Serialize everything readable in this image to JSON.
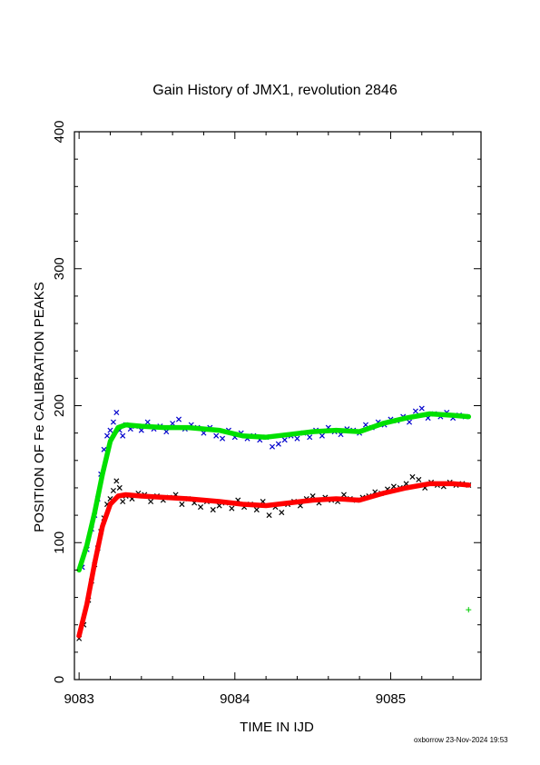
{
  "chart_data": {
    "type": "scatter",
    "title": "Gain History of JMX1, revolution 2846",
    "xlabel": "TIME IN IJD",
    "ylabel": "POSITION OF Fe CALIBRATION PEAKS",
    "xlim": [
      9082.97,
      9085.58
    ],
    "ylim": [
      0,
      400
    ],
    "xticks": [
      9083,
      9084,
      9085
    ],
    "yticks": [
      0,
      100,
      200,
      300,
      400
    ],
    "grid": false,
    "series": [
      {
        "marker": "x",
        "color": "#0000cc",
        "x": [
          9083.02,
          9083.05,
          9083.08,
          9083.1,
          9083.12,
          9083.14,
          9083.16,
          9083.18,
          9083.2,
          9083.22,
          9083.24,
          9083.26,
          9083.28,
          9083.3,
          9083.33,
          9083.36,
          9083.4,
          9083.44,
          9083.48,
          9083.52,
          9083.56,
          9083.6,
          9083.64,
          9083.68,
          9083.72,
          9083.76,
          9083.8,
          9083.84,
          9083.88,
          9083.92,
          9083.96,
          9084.0,
          9084.04,
          9084.08,
          9084.12,
          9084.16,
          9084.2,
          9084.24,
          9084.28,
          9084.32,
          9084.36,
          9084.4,
          9084.44,
          9084.48,
          9084.52,
          9084.56,
          9084.6,
          9084.64,
          9084.68,
          9084.72,
          9084.76,
          9084.8,
          9084.84,
          9084.88,
          9084.92,
          9084.96,
          9085.0,
          9085.04,
          9085.08,
          9085.12,
          9085.16,
          9085.2,
          9085.24,
          9085.28,
          9085.32,
          9085.36,
          9085.4,
          9085.44,
          9085.48
        ],
        "y": [
          82,
          95,
          110,
          120,
          132,
          150,
          168,
          178,
          182,
          188,
          195,
          182,
          178,
          186,
          183,
          185,
          182,
          188,
          183,
          185,
          181,
          187,
          190,
          183,
          186,
          184,
          180,
          184,
          178,
          176,
          182,
          177,
          180,
          176,
          178,
          175,
          177,
          170,
          172,
          175,
          178,
          176,
          180,
          177,
          182,
          178,
          184,
          181,
          179,
          183,
          182,
          180,
          186,
          184,
          188,
          186,
          190,
          189,
          192,
          188,
          196,
          198,
          191,
          194,
          192,
          195,
          191,
          193,
          192
        ]
      },
      {
        "marker": "x",
        "color": "#000000",
        "x": [
          9083.0,
          9083.03,
          9083.06,
          9083.08,
          9083.1,
          9083.12,
          9083.14,
          9083.16,
          9083.18,
          9083.2,
          9083.22,
          9083.24,
          9083.26,
          9083.28,
          9083.3,
          9083.34,
          9083.38,
          9083.42,
          9083.46,
          9083.5,
          9083.54,
          9083.58,
          9083.62,
          9083.66,
          9083.7,
          9083.74,
          9083.78,
          9083.82,
          9083.86,
          9083.9,
          9083.94,
          9083.98,
          9084.02,
          9084.06,
          9084.1,
          9084.14,
          9084.18,
          9084.22,
          9084.26,
          9084.3,
          9084.34,
          9084.38,
          9084.42,
          9084.46,
          9084.5,
          9084.54,
          9084.58,
          9084.62,
          9084.66,
          9084.7,
          9084.74,
          9084.78,
          9084.82,
          9084.86,
          9084.9,
          9084.94,
          9084.98,
          9085.02,
          9085.06,
          9085.1,
          9085.14,
          9085.18,
          9085.22,
          9085.26,
          9085.3,
          9085.34,
          9085.38,
          9085.42,
          9085.46,
          9085.5
        ],
        "y": [
          30,
          40,
          58,
          72,
          84,
          96,
          108,
          118,
          128,
          132,
          138,
          145,
          140,
          130,
          134,
          132,
          136,
          135,
          130,
          134,
          131,
          133,
          135,
          128,
          132,
          129,
          126,
          130,
          124,
          127,
          129,
          125,
          131,
          126,
          128,
          124,
          130,
          120,
          126,
          122,
          128,
          130,
          127,
          132,
          134,
          129,
          133,
          131,
          130,
          135,
          132,
          131,
          133,
          134,
          137,
          136,
          139,
          141,
          140,
          143,
          148,
          146,
          140,
          144,
          142,
          141,
          144,
          142,
          143,
          142
        ]
      },
      {
        "marker": "line",
        "color": "#00e000",
        "x": [
          9083.0,
          9083.05,
          9083.1,
          9083.15,
          9083.2,
          9083.25,
          9083.3,
          9083.4,
          9083.55,
          9083.7,
          9083.9,
          9084.05,
          9084.2,
          9084.35,
          9084.5,
          9084.65,
          9084.8,
          9084.95,
          9085.1,
          9085.25,
          9085.4,
          9085.5
        ],
        "y": [
          80,
          98,
          122,
          150,
          174,
          184,
          186,
          185,
          184,
          184,
          182,
          178,
          177,
          179,
          181,
          182,
          181,
          187,
          191,
          194,
          193,
          192
        ]
      },
      {
        "marker": "line",
        "color": "#ff0000",
        "x": [
          9083.0,
          9083.05,
          9083.1,
          9083.15,
          9083.2,
          9083.25,
          9083.3,
          9083.4,
          9083.55,
          9083.7,
          9083.9,
          9084.05,
          9084.2,
          9084.35,
          9084.5,
          9084.65,
          9084.8,
          9084.95,
          9085.1,
          9085.25,
          9085.4,
          9085.5
        ],
        "y": [
          32,
          55,
          85,
          112,
          128,
          134,
          135,
          134,
          133,
          132,
          130,
          128,
          127,
          129,
          131,
          132,
          131,
          136,
          140,
          143,
          143,
          142
        ]
      },
      {
        "marker": "+",
        "color": "#00cc00",
        "x": [
          9085.5
        ],
        "y": [
          51
        ]
      }
    ]
  },
  "footer": "oxborrow 23-Nov-2024 19:53"
}
